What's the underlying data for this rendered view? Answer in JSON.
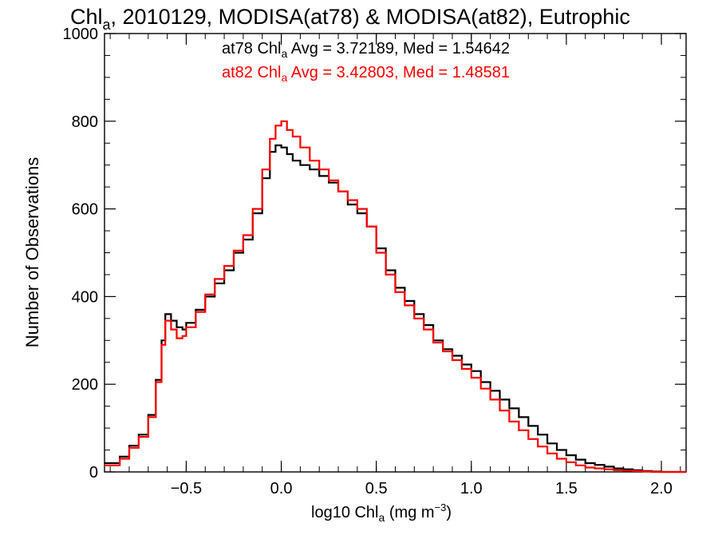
{
  "chart_data": {
    "type": "line",
    "title": {
      "prefix": "Chl",
      "sub": "a",
      "rest": ", 2010129, MODISA(at78) & MODISA(at82), Eutrophic"
    },
    "xlabel": {
      "prefix": "log10 Chl",
      "sub": "a",
      "mid": " (mg m",
      "sup": "−3",
      "end": ")"
    },
    "ylabel": "Number of Observations",
    "xlim": [
      -0.93,
      2.13
    ],
    "ylim": [
      0,
      1000
    ],
    "x_ticks": [
      {
        "v": -0.5,
        "label": "−0.5"
      },
      {
        "v": 0.0,
        "label": "0.0"
      },
      {
        "v": 0.5,
        "label": "0.5"
      },
      {
        "v": 1.0,
        "label": "1.0"
      },
      {
        "v": 1.5,
        "label": "1.5"
      },
      {
        "v": 2.0,
        "label": "2.0"
      }
    ],
    "y_ticks": [
      {
        "v": 0,
        "label": "0"
      },
      {
        "v": 200,
        "label": "200"
      },
      {
        "v": 400,
        "label": "400"
      },
      {
        "v": 600,
        "label": "600"
      },
      {
        "v": 800,
        "label": "800"
      },
      {
        "v": 1000,
        "label": "1000"
      }
    ],
    "annotations": [
      {
        "prefix": "at78 Chl",
        "sub": "a",
        "rest": " Avg = 3.72189, Med = 1.54642",
        "color": "#000000"
      },
      {
        "prefix": "at82 Chl",
        "sub": "a",
        "rest": " Avg = 3.42803, Med = 1.48581",
        "color": "#ff0000"
      }
    ],
    "series": [
      {
        "color": "#000000",
        "x": [
          -0.93,
          -0.85,
          -0.8,
          -0.75,
          -0.7,
          -0.66,
          -0.63,
          -0.61,
          -0.58,
          -0.55,
          -0.52,
          -0.5,
          -0.45,
          -0.4,
          -0.35,
          -0.3,
          -0.25,
          -0.2,
          -0.15,
          -0.1,
          -0.06,
          -0.03,
          0.0,
          0.03,
          0.06,
          0.1,
          0.15,
          0.2,
          0.25,
          0.3,
          0.35,
          0.4,
          0.45,
          0.5,
          0.55,
          0.6,
          0.65,
          0.7,
          0.75,
          0.8,
          0.85,
          0.9,
          0.95,
          1.0,
          1.05,
          1.1,
          1.15,
          1.2,
          1.25,
          1.3,
          1.35,
          1.4,
          1.45,
          1.5,
          1.55,
          1.6,
          1.65,
          1.7,
          1.75,
          1.8,
          1.85,
          1.9,
          1.95,
          2.0,
          2.05,
          2.13
        ],
        "values": [
          20,
          35,
          60,
          85,
          130,
          210,
          300,
          360,
          345,
          330,
          325,
          340,
          370,
          400,
          430,
          460,
          500,
          530,
          590,
          670,
          730,
          745,
          740,
          725,
          710,
          700,
          690,
          675,
          660,
          640,
          610,
          590,
          560,
          510,
          460,
          420,
          390,
          360,
          335,
          300,
          280,
          265,
          245,
          230,
          205,
          185,
          165,
          145,
          125,
          105,
          85,
          65,
          50,
          38,
          28,
          20,
          16,
          12,
          8,
          6,
          4,
          2,
          1,
          0,
          0,
          0
        ]
      },
      {
        "color": "#ff0000",
        "x": [
          -0.93,
          -0.85,
          -0.8,
          -0.75,
          -0.7,
          -0.66,
          -0.63,
          -0.61,
          -0.58,
          -0.55,
          -0.52,
          -0.5,
          -0.45,
          -0.4,
          -0.35,
          -0.3,
          -0.25,
          -0.2,
          -0.15,
          -0.1,
          -0.06,
          -0.03,
          0.0,
          0.03,
          0.06,
          0.1,
          0.15,
          0.2,
          0.25,
          0.3,
          0.35,
          0.4,
          0.45,
          0.5,
          0.55,
          0.6,
          0.65,
          0.7,
          0.75,
          0.8,
          0.85,
          0.9,
          0.95,
          1.0,
          1.05,
          1.1,
          1.15,
          1.2,
          1.25,
          1.3,
          1.35,
          1.4,
          1.45,
          1.5,
          1.55,
          1.6,
          1.65,
          1.7,
          1.75,
          1.8,
          1.85,
          1.9,
          1.95,
          2.0,
          2.05,
          2.13
        ],
        "values": [
          15,
          30,
          55,
          80,
          125,
          205,
          290,
          345,
          325,
          305,
          310,
          330,
          365,
          405,
          440,
          470,
          505,
          540,
          600,
          690,
          760,
          790,
          800,
          780,
          765,
          740,
          710,
          690,
          665,
          640,
          620,
          600,
          560,
          500,
          450,
          410,
          380,
          350,
          325,
          295,
          275,
          255,
          235,
          215,
          190,
          165,
          140,
          115,
          95,
          75,
          58,
          42,
          30,
          22,
          15,
          10,
          8,
          6,
          4,
          3,
          2,
          1,
          0,
          0,
          0,
          0
        ]
      }
    ]
  }
}
